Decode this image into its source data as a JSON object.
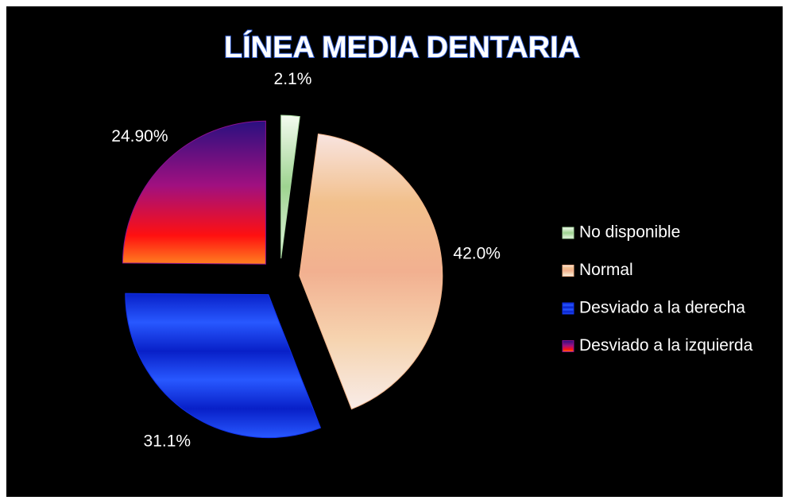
{
  "chart_data": {
    "type": "pie",
    "title": "LÍNEA MEDIA DENTARIA",
    "categories": [
      "No disponible",
      "Normal",
      "Desviado a la derecha",
      "Desviado a la izquierda"
    ],
    "values": [
      2.1,
      42.0,
      31.1,
      24.9
    ],
    "value_labels": [
      "2.1%",
      "42.0%",
      "31.1%",
      "24.90%"
    ],
    "colors": [
      "#a8d8a0",
      "#f2b48a",
      "#1030e8",
      "#8a1090"
    ],
    "legend": "right"
  }
}
